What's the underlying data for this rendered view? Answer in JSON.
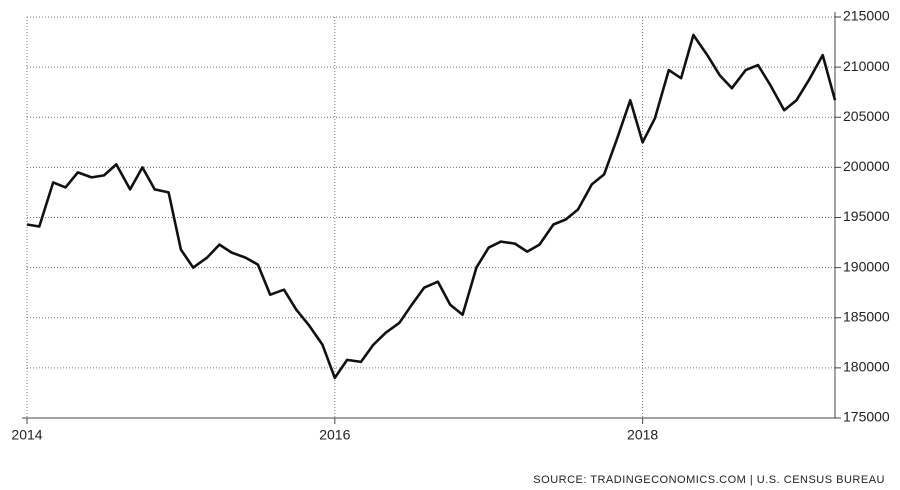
{
  "chart_data": {
    "type": "line",
    "source": "SOURCE: TRADINGECONOMICS.COM | U.S. CENSUS BUREAU",
    "x": [
      2014.0,
      2014.08,
      2014.17,
      2014.25,
      2014.33,
      2014.42,
      2014.5,
      2014.58,
      2014.67,
      2014.75,
      2014.83,
      2014.92,
      2015.0,
      2015.08,
      2015.17,
      2015.25,
      2015.33,
      2015.42,
      2015.5,
      2015.58,
      2015.67,
      2015.75,
      2015.83,
      2015.92,
      2016.0,
      2016.08,
      2016.17,
      2016.25,
      2016.33,
      2016.42,
      2016.5,
      2016.58,
      2016.67,
      2016.75,
      2016.83,
      2016.92,
      2017.0,
      2017.08,
      2017.17,
      2017.25,
      2017.33,
      2017.42,
      2017.5,
      2017.58,
      2017.67,
      2017.75,
      2017.83,
      2017.92,
      2018.0,
      2018.08,
      2018.17,
      2018.25,
      2018.33,
      2018.42,
      2018.5,
      2018.58,
      2018.67,
      2018.75,
      2018.83,
      2018.92,
      2019.0,
      2019.08,
      2019.17,
      2019.25
    ],
    "series": [
      {
        "color": "#111111",
        "values": [
          194300,
          194100,
          198500,
          198000,
          199500,
          199000,
          199200,
          200300,
          197800,
          200000,
          197800,
          197500,
          191800,
          190000,
          191000,
          192300,
          191500,
          191000,
          190300,
          187300,
          187800,
          185800,
          184300,
          182300,
          179000,
          180800,
          180600,
          182300,
          183500,
          184500,
          186300,
          188000,
          188600,
          186300,
          185300,
          190000,
          192000,
          192600,
          192400,
          191600,
          192300,
          194300,
          194800,
          195800,
          198300,
          199300,
          202700,
          206700,
          202500,
          204900,
          209700,
          208900,
          213200,
          211200,
          209200,
          207900,
          209700,
          210200,
          208200,
          205700,
          206700,
          208700,
          211200,
          206700
        ]
      }
    ],
    "xlim": [
      2014,
      2019.25
    ],
    "xticks": [
      2014,
      2016,
      2018
    ],
    "ylim": [
      175000,
      215000
    ],
    "yticks": [
      175000,
      180000,
      185000,
      190000,
      195000,
      200000,
      205000,
      210000,
      215000
    ],
    "grid": true
  }
}
